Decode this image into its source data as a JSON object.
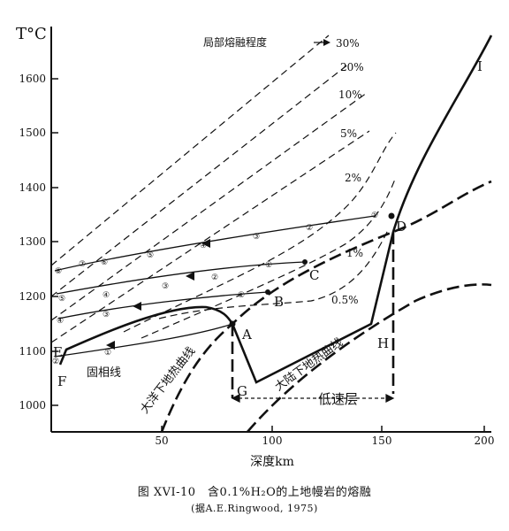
{
  "figure": {
    "y_axis_label": "T°C",
    "x_axis_label": "深度km",
    "y_ticks": [
      "1600",
      "1500",
      "1400",
      "1300",
      "1200",
      "1100",
      "1000"
    ],
    "x_ticks": [
      "50",
      "100",
      "150",
      "200"
    ],
    "melt_label": "局部熔融程度",
    "melt_percents": [
      "30%",
      "20%",
      "10%",
      "5%",
      "2%",
      "1%",
      "0.5%"
    ],
    "points": [
      "A",
      "B",
      "C",
      "D",
      "E",
      "F",
      "G",
      "H",
      "I"
    ],
    "solidus_label": "固相线",
    "oceanic_geotherm_label": "大洋下地热曲线",
    "continental_geotherm_label": "大陆下地热曲线",
    "low_velocity_label": "低速层",
    "circled_labels": [
      "①",
      "②",
      "③",
      "④",
      "⑤",
      "⑥",
      "⑦",
      "⑧"
    ],
    "caption": "图 XVI-10　含0.1%H₂O的上地幔岩的熔融",
    "source": "(据A.E.Ringwood, 1975)"
  }
}
